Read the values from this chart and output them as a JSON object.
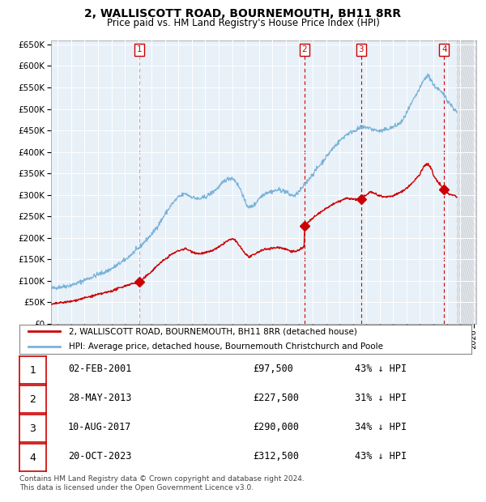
{
  "title": "2, WALLISCOTT ROAD, BOURNEMOUTH, BH11 8RR",
  "subtitle": "Price paid vs. HM Land Registry's House Price Index (HPI)",
  "plot_bg_color": "#e8f0f8",
  "hpi_color": "#7ab3d8",
  "price_color": "#cc0000",
  "ylim": [
    0,
    660000
  ],
  "yticks": [
    0,
    50000,
    100000,
    150000,
    200000,
    250000,
    300000,
    350000,
    400000,
    450000,
    500000,
    550000,
    600000,
    650000
  ],
  "xlim_start": 1994.5,
  "xlim_end": 2026.2,
  "transactions": [
    {
      "num": 1,
      "date": "02-FEB-2001",
      "year": 2001.08,
      "price": 97500
    },
    {
      "num": 2,
      "date": "28-MAY-2013",
      "year": 2013.4,
      "price": 227500
    },
    {
      "num": 3,
      "date": "10-AUG-2017",
      "year": 2017.61,
      "price": 290000
    },
    {
      "num": 4,
      "date": "20-OCT-2023",
      "year": 2023.8,
      "price": 312500
    }
  ],
  "legend_line1": "2, WALLISCOTT ROAD, BOURNEMOUTH, BH11 8RR (detached house)",
  "legend_line2": "HPI: Average price, detached house, Bournemouth Christchurch and Poole",
  "footer": "Contains HM Land Registry data © Crown copyright and database right 2024.\nThis data is licensed under the Open Government Licence v3.0.",
  "table_rows": [
    [
      "1",
      "02-FEB-2001",
      "£97,500",
      "43% ↓ HPI"
    ],
    [
      "2",
      "28-MAY-2013",
      "£227,500",
      "31% ↓ HPI"
    ],
    [
      "3",
      "10-AUG-2017",
      "£290,000",
      "34% ↓ HPI"
    ],
    [
      "4",
      "20-OCT-2023",
      "£312,500",
      "43% ↓ HPI"
    ]
  ],
  "hatch_start": 2024.75
}
